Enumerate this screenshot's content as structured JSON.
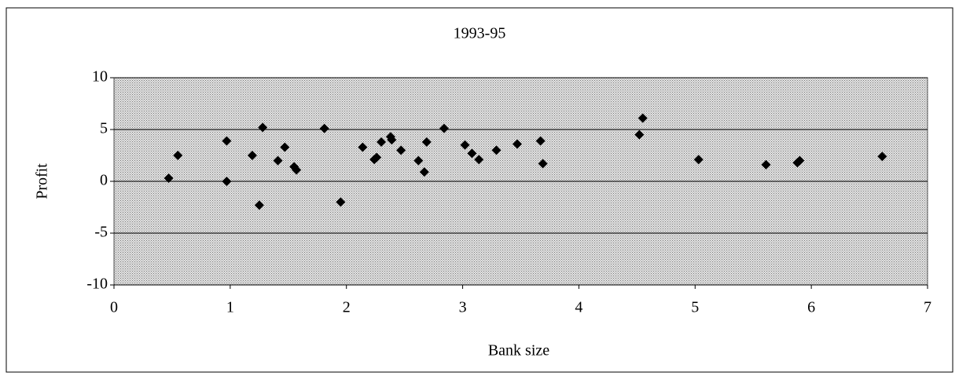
{
  "chart_data": {
    "type": "scatter",
    "title": "1993-95",
    "x_label": "Bank size",
    "y_label": "Profit",
    "xlim": [
      0,
      7
    ],
    "xticks": [
      0,
      1,
      2,
      3,
      4,
      5,
      6,
      7
    ],
    "ylim": [
      -10,
      10
    ],
    "yticks": [
      -10,
      -5,
      0,
      5,
      10
    ],
    "grid": true,
    "color": "#000000",
    "background": "#c8c8c8",
    "x": [
      0.47,
      0.55,
      0.97,
      0.97,
      1.19,
      1.28,
      1.25,
      1.41,
      1.47,
      1.55,
      1.57,
      1.81,
      1.95,
      2.14,
      2.24,
      2.26,
      2.3,
      2.38,
      2.39,
      2.47,
      2.62,
      2.69,
      2.67,
      2.84,
      3.02,
      3.08,
      3.14,
      3.29,
      3.47,
      3.67,
      3.69,
      4.52,
      4.55,
      5.03,
      5.61,
      5.88,
      5.9,
      6.61
    ],
    "values": [
      0.3,
      2.5,
      3.9,
      0.0,
      2.5,
      5.2,
      -2.3,
      2.0,
      3.3,
      1.4,
      1.1,
      5.1,
      -2.0,
      3.3,
      2.1,
      2.3,
      3.8,
      4.3,
      4.0,
      3.0,
      2.0,
      3.8,
      0.9,
      5.1,
      3.5,
      2.7,
      2.1,
      3.0,
      3.6,
      3.9,
      1.7,
      4.5,
      6.1,
      2.1,
      1.6,
      1.8,
      2.0,
      2.4
    ]
  }
}
